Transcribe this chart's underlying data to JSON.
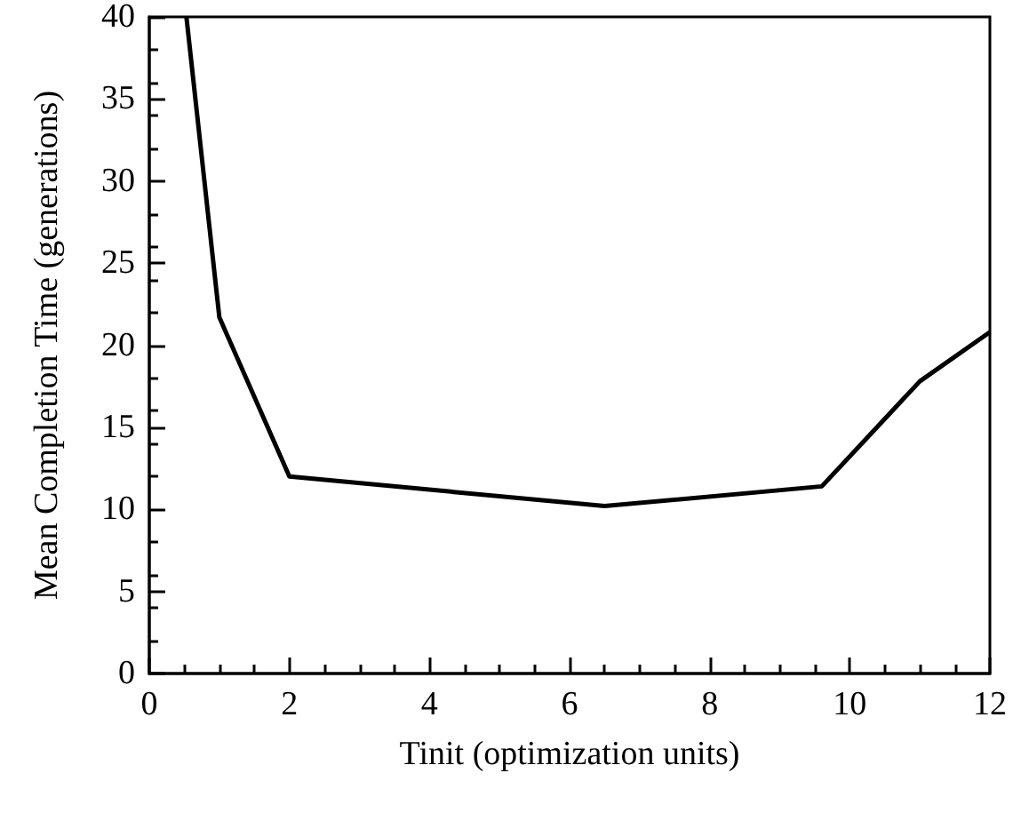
{
  "chart_data": {
    "type": "line",
    "xlabel": "Tinit (optimization units)",
    "ylabel": "Mean Completion Time (generations)",
    "x": [
      0.53,
      1,
      2,
      6.5,
      9.6,
      11,
      12
    ],
    "series": [
      {
        "color": "#000000",
        "values": [
          40,
          21.7,
          12,
          10.2,
          11.4,
          17.8,
          20.8
        ]
      }
    ],
    "xlim": [
      0,
      12
    ],
    "xticks": [
      0,
      2,
      4,
      6,
      8,
      10,
      12
    ],
    "ylim": [
      0,
      40
    ],
    "yticks": [
      0,
      5,
      10,
      15,
      20,
      25,
      30,
      35,
      40
    ],
    "grid": false,
    "marker": "none",
    "line_style": "solid"
  }
}
